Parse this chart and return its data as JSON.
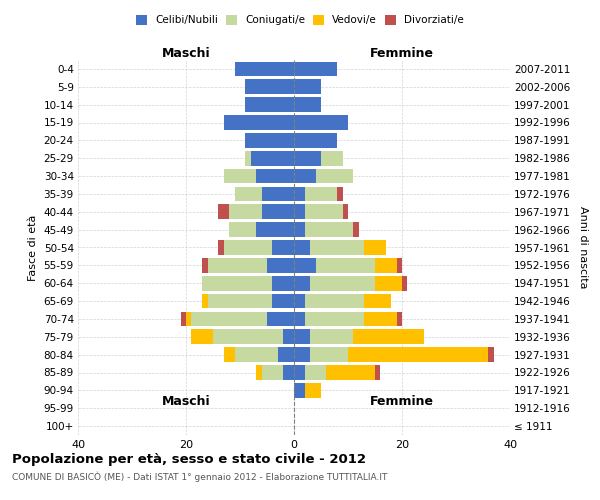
{
  "age_groups": [
    "100+",
    "95-99",
    "90-94",
    "85-89",
    "80-84",
    "75-79",
    "70-74",
    "65-69",
    "60-64",
    "55-59",
    "50-54",
    "45-49",
    "40-44",
    "35-39",
    "30-34",
    "25-29",
    "20-24",
    "15-19",
    "10-14",
    "5-9",
    "0-4"
  ],
  "birth_years": [
    "≤ 1911",
    "1912-1916",
    "1917-1921",
    "1922-1926",
    "1927-1931",
    "1932-1936",
    "1937-1941",
    "1942-1946",
    "1947-1951",
    "1952-1956",
    "1957-1961",
    "1962-1966",
    "1967-1971",
    "1972-1976",
    "1977-1981",
    "1982-1986",
    "1987-1991",
    "1992-1996",
    "1997-2001",
    "2002-2006",
    "2007-2011"
  ],
  "maschi": {
    "celibi": [
      0,
      0,
      0,
      2,
      3,
      2,
      5,
      4,
      4,
      5,
      4,
      7,
      6,
      6,
      7,
      8,
      9,
      13,
      9,
      9,
      11
    ],
    "coniugati": [
      0,
      0,
      0,
      4,
      8,
      13,
      14,
      12,
      13,
      11,
      9,
      5,
      6,
      5,
      6,
      1,
      0,
      0,
      0,
      0,
      0
    ],
    "vedovi": [
      0,
      0,
      0,
      1,
      2,
      4,
      1,
      1,
      0,
      0,
      0,
      0,
      0,
      0,
      0,
      0,
      0,
      0,
      0,
      0,
      0
    ],
    "divorziati": [
      0,
      0,
      0,
      0,
      0,
      0,
      1,
      0,
      0,
      1,
      1,
      0,
      2,
      0,
      0,
      0,
      0,
      0,
      0,
      0,
      0
    ]
  },
  "femmine": {
    "nubili": [
      0,
      0,
      2,
      2,
      3,
      3,
      2,
      2,
      3,
      4,
      3,
      2,
      2,
      2,
      4,
      5,
      8,
      10,
      5,
      5,
      8
    ],
    "coniugate": [
      0,
      0,
      0,
      4,
      7,
      8,
      11,
      11,
      12,
      11,
      10,
      9,
      7,
      6,
      7,
      4,
      0,
      0,
      0,
      0,
      0
    ],
    "vedove": [
      0,
      0,
      3,
      9,
      26,
      13,
      6,
      5,
      5,
      4,
      4,
      0,
      0,
      0,
      0,
      0,
      0,
      0,
      0,
      0,
      0
    ],
    "divorziate": [
      0,
      0,
      0,
      1,
      1,
      0,
      1,
      0,
      1,
      1,
      0,
      1,
      1,
      1,
      0,
      0,
      0,
      0,
      0,
      0,
      0
    ]
  },
  "colors": {
    "celibi": "#4472c4",
    "coniugati": "#c5d9a0",
    "vedovi": "#ffc000",
    "divorziati": "#c0504d"
  },
  "xlim": 40,
  "title": "Popolazione per età, sesso e stato civile - 2012",
  "subtitle": "COMUNE DI BASICÒ (ME) - Dati ISTAT 1° gennaio 2012 - Elaborazione TUTTITALIA.IT",
  "ylabel_left": "Fasce di età",
  "ylabel_right": "Anni di nascita",
  "xlabel_left": "Maschi",
  "xlabel_right": "Femmine",
  "legend_labels": [
    "Celibi/Nubili",
    "Coniugati/e",
    "Vedovi/e",
    "Divorziati/e"
  ]
}
